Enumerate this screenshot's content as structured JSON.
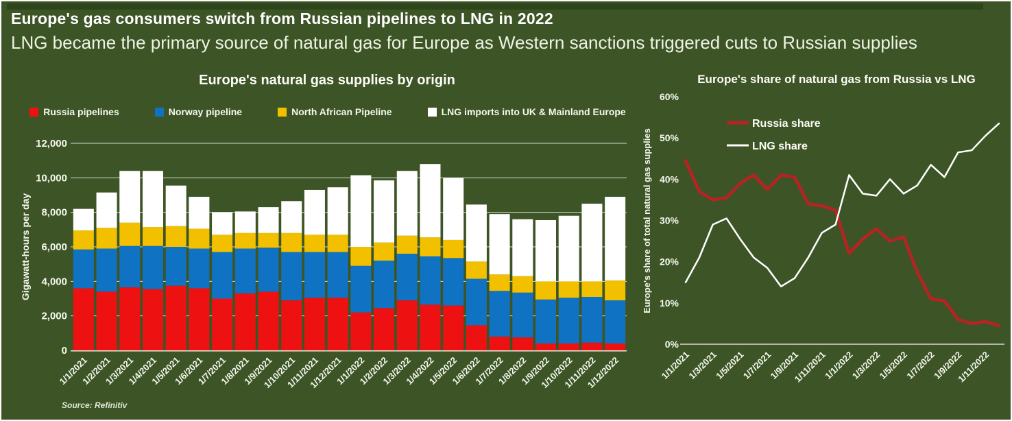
{
  "header": {
    "title": "Europe's gas consumers switch from Russian pipelines to LNG in 2022",
    "subtitle": "LNG became the primary source of natural gas for Europe as Western sanctions triggered cuts to Russian supplies"
  },
  "source": "Source: Refinitiv",
  "colors": {
    "background": "#3d5526",
    "top_strip": "#2d451a",
    "text": "#f5f8ee",
    "gridline": "rgba(255,255,255,0.8)",
    "axis_line": "#d9d9cd",
    "russia_bar": "#ee1111",
    "norway_bar": "#1072c2",
    "north_africa_bar": "#f3c000",
    "lng_bar": "#ffffff",
    "russia_line": "#b82222",
    "lng_line": "#ffffff"
  },
  "chart_data": [
    {
      "type": "bar",
      "stacked": true,
      "title": "Europe's natural gas supplies by origin",
      "xlabel": "",
      "ylabel": "Gigawatt-hours per day",
      "ylim": [
        0,
        12000
      ],
      "ytick_step": 2000,
      "ytick_labels": [
        "0",
        "2,000",
        "4,000",
        "6,000",
        "8,000",
        "10,000",
        "12,000"
      ],
      "grid": true,
      "legend_position": "top",
      "categories": [
        "1/1/2021",
        "1/2/2021",
        "1/3/2021",
        "1/4/2021",
        "1/5/2021",
        "1/6/2021",
        "1/7/2021",
        "1/8/2021",
        "1/9/2021",
        "1/10/2021",
        "1/11/2021",
        "1/12/2021",
        "1/1/2022",
        "1/2/2022",
        "1/3/2022",
        "1/4/2022",
        "1/5/2022",
        "1/6/2022",
        "1/7/2022",
        "1/8/2022",
        "1/9/2022",
        "1/10/2022",
        "1/11/2022",
        "1/12/2022"
      ],
      "series": [
        {
          "name": "Russia pipelines",
          "color": "#ee1111",
          "values": [
            3600,
            3400,
            3650,
            3550,
            3750,
            3600,
            3000,
            3300,
            3400,
            2900,
            3050,
            3050,
            2200,
            2450,
            2900,
            2650,
            2600,
            1450,
            800,
            750,
            400,
            400,
            450,
            400
          ]
        },
        {
          "name": "Norway pipeline",
          "color": "#1072c2",
          "values": [
            2250,
            2500,
            2400,
            2500,
            2250,
            2300,
            2700,
            2600,
            2550,
            2800,
            2650,
            2650,
            2700,
            2750,
            2700,
            2800,
            2750,
            2700,
            2650,
            2600,
            2550,
            2650,
            2650,
            2500
          ]
        },
        {
          "name": "North African Pipeline",
          "color": "#f3c000",
          "values": [
            1100,
            1200,
            1350,
            1100,
            1200,
            1150,
            1000,
            900,
            850,
            1100,
            1000,
            1000,
            1100,
            1050,
            1050,
            1100,
            1050,
            1000,
            950,
            950,
            1050,
            950,
            900,
            1150
          ]
        },
        {
          "name": "LNG imports into UK & Mainland Europe",
          "color": "#ffffff",
          "values": [
            1250,
            2050,
            3000,
            3250,
            2350,
            1850,
            1300,
            1250,
            1500,
            1850,
            2600,
            2750,
            4150,
            3600,
            3750,
            4250,
            3600,
            3300,
            3500,
            3300,
            3550,
            3800,
            4500,
            4850
          ]
        }
      ]
    },
    {
      "type": "line",
      "title": "Europe's share of natural gas from Russia vs LNG",
      "xlabel": "",
      "ylabel": "Europe's share of total natural gas supplies",
      "ylim": [
        0,
        60
      ],
      "ytick_step": 10,
      "ytick_labels": [
        "0%",
        "10%",
        "20%",
        "30%",
        "40%",
        "50%",
        "60%"
      ],
      "grid": false,
      "legend_position": "top-left-inside",
      "categories": [
        "1/1/2021",
        "1/2/2021",
        "1/3/2021",
        "1/4/2021",
        "1/5/2021",
        "1/6/2021",
        "1/7/2021",
        "1/8/2021",
        "1/9/2021",
        "1/10/2021",
        "1/11/2021",
        "1/12/2021",
        "1/1/2022",
        "1/2/2022",
        "1/3/2022",
        "1/4/2022",
        "1/5/2022",
        "1/6/2022",
        "1/7/2022",
        "1/8/2022",
        "1/9/2022",
        "1/10/2022",
        "1/11/2022",
        "1/12/2022"
      ],
      "xtick_labels": [
        "1/1/2021",
        "1/3/2021",
        "1/5/2021",
        "1/7/2021",
        "1/9/2021",
        "1/11/2021",
        "1/1/2022",
        "1/3/2022",
        "1/5/2022",
        "1/7/2022",
        "1/9/2022",
        "1/11/2022"
      ],
      "series": [
        {
          "name": "Russia share",
          "color": "#b82222",
          "stroke_width": 4.5,
          "values": [
            44.5,
            37,
            35,
            35.5,
            39,
            41,
            37.5,
            41,
            40.5,
            34,
            33.5,
            32.5,
            22,
            25.5,
            28,
            25,
            26,
            17.5,
            11,
            10.5,
            6,
            5,
            5.5,
            4.5
          ]
        },
        {
          "name": "LNG share",
          "color": "#ffffff",
          "stroke_width": 2.5,
          "values": [
            15,
            21,
            29,
            30.5,
            25.5,
            21,
            18.5,
            14,
            16,
            21,
            27,
            29,
            41,
            36.5,
            36,
            40,
            36.5,
            38.5,
            43.5,
            40.5,
            46.5,
            47,
            50.5,
            53.5
          ]
        }
      ]
    }
  ]
}
